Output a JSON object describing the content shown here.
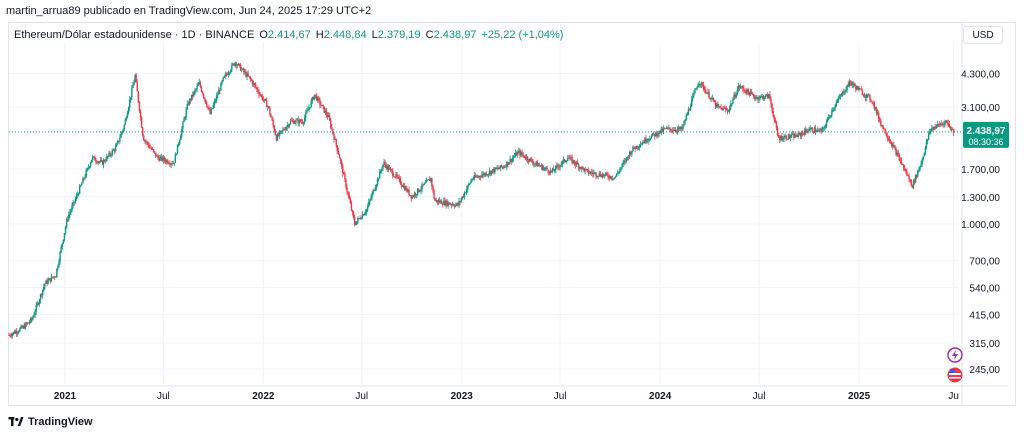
{
  "header": {
    "publisher": "martin_arrua89 publicado en TradingView.com, Jun 24, 2025 17:29 UTC+2"
  },
  "legend": {
    "symbol": "Ethereum/Dólar estadounidense · 1D · BINANCE",
    "open_label": "O",
    "open": "2.414,67",
    "high_label": "H",
    "high": "2.448,84",
    "low_label": "L",
    "low": "2.379,19",
    "close_label": "C",
    "close": "2.438,97",
    "change": "+25,22 (+1,04%)"
  },
  "currency_button": "USD",
  "price_tag": {
    "price": "2.438,97",
    "countdown": "08:30:36"
  },
  "footer": {
    "brand": "TradingView"
  },
  "colors": {
    "up": "#089981",
    "down": "#f23645",
    "grid": "#f0f3fa",
    "axis_text": "#131722",
    "tag": "#089981"
  },
  "icons": [
    "lightning-icon",
    "us-flag-icon"
  ],
  "chart_data": {
    "type": "candlestick",
    "y_scale": "log",
    "y_ticks": [
      {
        "value": 245,
        "label": "245,00"
      },
      {
        "value": 315,
        "label": "315,00"
      },
      {
        "value": 415,
        "label": "415,00"
      },
      {
        "value": 540,
        "label": "540,00"
      },
      {
        "value": 700,
        "label": "700,00"
      },
      {
        "value": 1000,
        "label": "1.000,00"
      },
      {
        "value": 1300,
        "label": "1.300,00"
      },
      {
        "value": 1700,
        "label": "1.700,00"
      },
      {
        "value": 3100,
        "label": "3.100,00"
      },
      {
        "value": 4300,
        "label": "4.300,00"
      }
    ],
    "x_ticks": [
      {
        "date": "2021-01-01",
        "label": "2021"
      },
      {
        "date": "2021-07-01",
        "label": "Jul"
      },
      {
        "date": "2022-01-01",
        "label": "2022"
      },
      {
        "date": "2022-07-01",
        "label": "Jul"
      },
      {
        "date": "2023-01-01",
        "label": "2023"
      },
      {
        "date": "2023-07-01",
        "label": "Jul"
      },
      {
        "date": "2024-01-01",
        "label": "2024"
      },
      {
        "date": "2024-07-01",
        "label": "Jul"
      },
      {
        "date": "2025-01-01",
        "label": "2025"
      },
      {
        "date": "2025-06-24",
        "label": "Ju"
      }
    ],
    "x_range": [
      "2020-09-20",
      "2025-07-02"
    ],
    "y_range": [
      220,
      5500
    ],
    "last_price": 2438.97,
    "grid": true,
    "price_path": [
      [
        "2020-09-20",
        340
      ],
      [
        "2020-10-15",
        365
      ],
      [
        "2020-11-01",
        395
      ],
      [
        "2020-11-25",
        560
      ],
      [
        "2020-12-15",
        610
      ],
      [
        "2021-01-05",
        1050
      ],
      [
        "2021-01-25",
        1350
      ],
      [
        "2021-02-20",
        1900
      ],
      [
        "2021-03-10",
        1800
      ],
      [
        "2021-04-05",
        2100
      ],
      [
        "2021-04-20",
        2600
      ],
      [
        "2021-05-10",
        4200
      ],
      [
        "2021-05-25",
        2300
      ],
      [
        "2021-06-20",
        1900
      ],
      [
        "2021-07-20",
        1800
      ],
      [
        "2021-08-15",
        3200
      ],
      [
        "2021-09-05",
        3900
      ],
      [
        "2021-09-25",
        2900
      ],
      [
        "2021-10-20",
        4100
      ],
      [
        "2021-11-10",
        4800
      ],
      [
        "2021-12-10",
        4000
      ],
      [
        "2022-01-10",
        3100
      ],
      [
        "2022-01-25",
        2300
      ],
      [
        "2022-02-20",
        2700
      ],
      [
        "2022-03-15",
        2700
      ],
      [
        "2022-04-05",
        3500
      ],
      [
        "2022-05-01",
        2800
      ],
      [
        "2022-05-20",
        1950
      ],
      [
        "2022-06-18",
        1000
      ],
      [
        "2022-07-10",
        1150
      ],
      [
        "2022-08-10",
        1800
      ],
      [
        "2022-09-05",
        1550
      ],
      [
        "2022-10-01",
        1300
      ],
      [
        "2022-11-05",
        1550
      ],
      [
        "2022-11-12",
        1250
      ],
      [
        "2022-12-25",
        1200
      ],
      [
        "2023-01-20",
        1550
      ],
      [
        "2023-02-20",
        1650
      ],
      [
        "2023-03-20",
        1750
      ],
      [
        "2023-04-15",
        2000
      ],
      [
        "2023-05-15",
        1800
      ],
      [
        "2023-06-15",
        1650
      ],
      [
        "2023-07-15",
        1900
      ],
      [
        "2023-08-20",
        1650
      ],
      [
        "2023-10-10",
        1570
      ],
      [
        "2023-11-10",
        2050
      ],
      [
        "2023-12-10",
        2300
      ],
      [
        "2024-01-10",
        2500
      ],
      [
        "2024-02-10",
        2500
      ],
      [
        "2024-03-12",
        4000
      ],
      [
        "2024-04-15",
        3100
      ],
      [
        "2024-05-05",
        3000
      ],
      [
        "2024-05-25",
        3800
      ],
      [
        "2024-06-25",
        3400
      ],
      [
        "2024-07-20",
        3450
      ],
      [
        "2024-08-05",
        2300
      ],
      [
        "2024-09-10",
        2350
      ],
      [
        "2024-10-01",
        2500
      ],
      [
        "2024-10-25",
        2450
      ],
      [
        "2024-11-15",
        3100
      ],
      [
        "2024-12-15",
        3950
      ],
      [
        "2025-01-05",
        3600
      ],
      [
        "2025-01-25",
        3300
      ],
      [
        "2025-02-10",
        2650
      ],
      [
        "2025-03-10",
        2000
      ],
      [
        "2025-04-09",
        1450
      ],
      [
        "2025-04-25",
        1800
      ],
      [
        "2025-05-12",
        2500
      ],
      [
        "2025-06-10",
        2700
      ],
      [
        "2025-06-24",
        2438.97
      ]
    ]
  }
}
